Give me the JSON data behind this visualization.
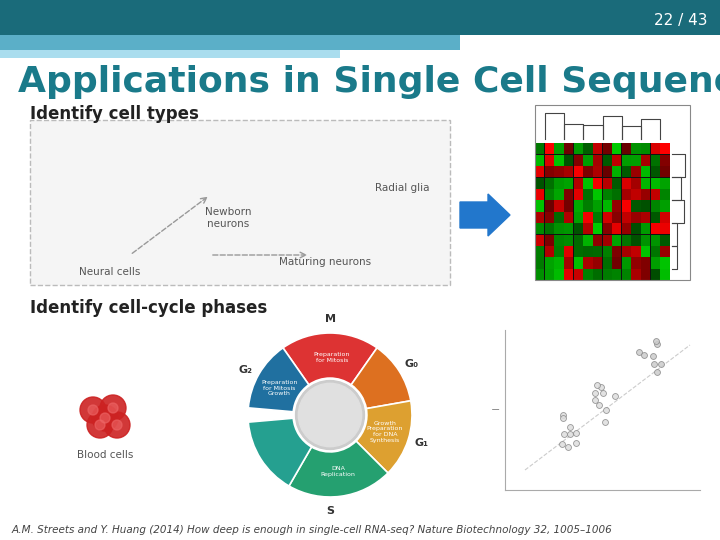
{
  "slide_number": "22 / 43",
  "title": "Applications in Single Cell Sequencing",
  "subtitle1": "Identify cell types",
  "subtitle2": "Identify cell-cycle phases",
  "footnote": "A.M. Streets and Y. Huang (2014) How deep is enough in single-cell RNA-seq? Nature Biotechnology 32, 1005–1006",
  "header_bg_color": "#1a6b7a",
  "header_bar1_color": "#5bafc8",
  "header_bar2_color": "#aaddee",
  "title_color": "#1a7a8a",
  "subtitle_color": "#222222",
  "footnote_color": "#444444",
  "bg_color": "#ffffff",
  "slide_number_color": "#ffffff",
  "slide_number_fontsize": 11,
  "title_fontsize": 26,
  "subtitle_fontsize": 12,
  "footnote_fontsize": 7.5
}
